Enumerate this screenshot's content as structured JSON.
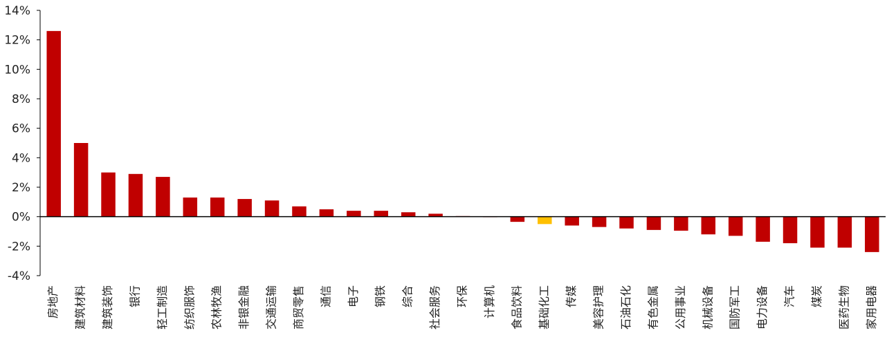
{
  "colors": {
    "bar": "#c00000",
    "highlight": "#ffc000",
    "axis": "#000000",
    "text": "#222222"
  },
  "chart_data": {
    "type": "bar",
    "title": "",
    "xlabel": "",
    "ylabel": "",
    "ylim": [
      -0.04,
      0.14
    ],
    "y_ticks": [
      -0.04,
      -0.02,
      0.0,
      0.02,
      0.04,
      0.06,
      0.08,
      0.1,
      0.12,
      0.14
    ],
    "y_tick_labels": [
      "-4%",
      "-2%",
      "0%",
      "2%",
      "4%",
      "6%",
      "8%",
      "10%",
      "12%",
      "14%"
    ],
    "grid": false,
    "legend": "none",
    "categories": [
      "房地产",
      "建筑材料",
      "建筑装饰",
      "银行",
      "轻工制造",
      "纺织服饰",
      "农林牧渔",
      "非银金融",
      "交通运输",
      "商贸零售",
      "通信",
      "电子",
      "钢铁",
      "综合",
      "社会服务",
      "环保",
      "计算机",
      "食品饮料",
      "基础化工",
      "传媒",
      "美容护理",
      "石油石化",
      "有色金属",
      "公用事业",
      "机械设备",
      "国防军工",
      "电力设备",
      "汽车",
      "煤炭",
      "医药生物",
      "家用电器"
    ],
    "values": [
      0.126,
      0.05,
      0.03,
      0.029,
      0.027,
      0.013,
      0.013,
      0.012,
      0.011,
      0.007,
      0.005,
      0.004,
      0.004,
      0.003,
      0.002,
      0.0004,
      -0.0003,
      -0.0035,
      -0.005,
      -0.006,
      -0.007,
      -0.008,
      -0.009,
      -0.0095,
      -0.012,
      -0.013,
      -0.017,
      -0.018,
      -0.021,
      -0.021,
      -0.024
    ],
    "highlight_category": "基础化工"
  }
}
